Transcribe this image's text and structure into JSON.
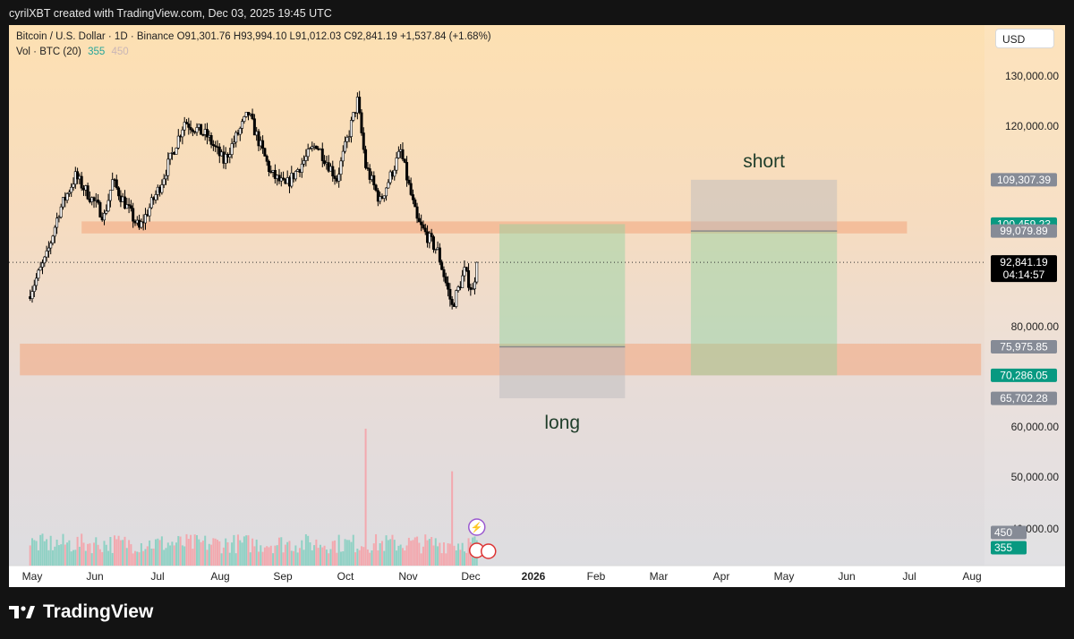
{
  "header": {
    "credit": "cyrilXBT created with TradingView.com, Dec 03, 2025 19:45 UTC"
  },
  "legend": {
    "line1": "Bitcoin / U.S. Dollar · 1D · Binance  O91,301.76  H93,994.10  L91,012.03  C92,841.19  +1,537.84 (+1.68%)",
    "vol_label": "Vol · BTC (20)",
    "vol_value": "355",
    "vol_ma": "450"
  },
  "currency": "USD",
  "footer": {
    "brand": "TradingView"
  },
  "chart_data": {
    "type": "candlestick",
    "symbol": "Bitcoin / U.S. Dollar",
    "interval": "1D",
    "exchange": "Binance",
    "last": {
      "open": 91301.76,
      "high": 93994.1,
      "low": 91012.03,
      "close": 92841.19,
      "change": 1537.84,
      "change_pct": 1.68,
      "countdown": "04:14:57"
    },
    "price_axis_ticks": [
      {
        "label": "130,000.00",
        "value": 130000
      },
      {
        "label": "120,000.00",
        "value": 120000
      },
      {
        "label": "80,000.00",
        "value": 80000
      },
      {
        "label": "60,000.00",
        "value": 60000
      },
      {
        "label": "50,000.00",
        "value": 50000
      }
    ],
    "time_axis_ticks": [
      {
        "label": "May",
        "month": 0
      },
      {
        "label": "Jun",
        "month": 1
      },
      {
        "label": "Jul",
        "month": 2
      },
      {
        "label": "Aug",
        "month": 3
      },
      {
        "label": "Sep",
        "month": 4
      },
      {
        "label": "Oct",
        "month": 5
      },
      {
        "label": "Nov",
        "month": 6
      },
      {
        "label": "Dec",
        "month": 7
      },
      {
        "label": "2026",
        "month": 8,
        "bold": true
      },
      {
        "label": "Feb",
        "month": 9
      },
      {
        "label": "Mar",
        "month": 10
      },
      {
        "label": "Apr",
        "month": 11
      },
      {
        "label": "May",
        "month": 12
      },
      {
        "label": "Jun",
        "month": 13
      },
      {
        "label": "Jul",
        "month": 14
      },
      {
        "label": "Aug",
        "month": 15
      }
    ],
    "price_anchors": [
      {
        "date": "2025-04-29",
        "price": 86000
      },
      {
        "date": "2025-05-08",
        "price": 94000
      },
      {
        "date": "2025-05-14",
        "price": 103000
      },
      {
        "date": "2025-05-22",
        "price": 110000
      },
      {
        "date": "2025-06-05",
        "price": 102000
      },
      {
        "date": "2025-06-09",
        "price": 109000
      },
      {
        "date": "2025-06-22",
        "price": 99500
      },
      {
        "date": "2025-07-02",
        "price": 108000
      },
      {
        "date": "2025-07-14",
        "price": 121000
      },
      {
        "date": "2025-07-25",
        "price": 118000
      },
      {
        "date": "2025-08-02",
        "price": 113000
      },
      {
        "date": "2025-08-14",
        "price": 122500
      },
      {
        "date": "2025-08-25",
        "price": 110500
      },
      {
        "date": "2025-09-01",
        "price": 108000
      },
      {
        "date": "2025-09-16",
        "price": 116500
      },
      {
        "date": "2025-09-26",
        "price": 109500
      },
      {
        "date": "2025-10-06",
        "price": 125000
      },
      {
        "date": "2025-10-10",
        "price": 112000
      },
      {
        "date": "2025-10-17",
        "price": 105000
      },
      {
        "date": "2025-10-27",
        "price": 115000
      },
      {
        "date": "2025-11-04",
        "price": 101000
      },
      {
        "date": "2025-11-14",
        "price": 95000
      },
      {
        "date": "2025-11-21",
        "price": 84000
      },
      {
        "date": "2025-11-27",
        "price": 91000
      },
      {
        "date": "2025-12-01",
        "price": 87000
      },
      {
        "date": "2025-12-03",
        "price": 92841.19
      }
    ],
    "volume_spikes": [
      {
        "date": "2025-10-10",
        "volume": 900
      },
      {
        "date": "2025-11-21",
        "volume": 620
      }
    ],
    "zones": [
      {
        "name": "resistance",
        "from": 98600,
        "to": 101000,
        "start": "2025-05-25",
        "end": "2026-06-30",
        "color": "#f2a67c"
      },
      {
        "name": "support",
        "from": 70286.05,
        "to": 76600,
        "start": "2025-04-25",
        "end": "2026-08-05",
        "color": "#f2a67c"
      }
    ],
    "positions": [
      {
        "label": "long",
        "start": "2025-12-14",
        "end": "2026-02-13",
        "entry": 75975.85,
        "target": 100459.23,
        "stop": 65702.28
      },
      {
        "label": "short",
        "start": "2026-03-17",
        "end": "2026-05-27",
        "entry": 99079.89,
        "target": 70286.05,
        "stop": 109307.39
      }
    ],
    "price_labels": [
      {
        "text": "109,307.39",
        "value": 109307.39,
        "bg": "#868b96"
      },
      {
        "text": "100,459.23",
        "value": 100459.23,
        "bg": "#089981"
      },
      {
        "text": "99,079.89",
        "value": 99079.89,
        "bg": "#868b96"
      },
      {
        "text": "75,975.85",
        "value": 75975.85,
        "bg": "#868b96"
      },
      {
        "text": "70,286.05",
        "value": 70286.05,
        "bg": "#089981"
      },
      {
        "text": "65,702.28",
        "value": 65702.28,
        "bg": "#868b96"
      }
    ],
    "last_price_label": "92,841.19",
    "volume_labels": [
      {
        "text": "450",
        "bg": "#868b96"
      },
      {
        "text": "355",
        "bg": "#089981"
      }
    ],
    "volume_axis_label": "40,000.00",
    "colors": {
      "up": "#089981",
      "down": "#f23645",
      "candle": "#000000"
    }
  }
}
